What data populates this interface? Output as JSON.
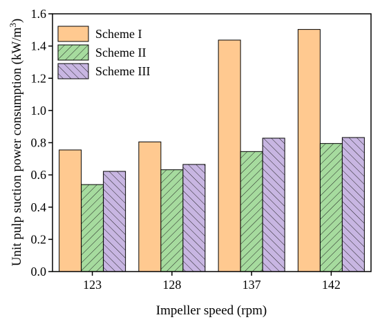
{
  "chart_data": {
    "type": "bar",
    "categories": [
      "123",
      "128",
      "137",
      "142"
    ],
    "series": [
      {
        "name": "Scheme I",
        "values": [
          0.755,
          0.805,
          1.437,
          1.503
        ],
        "fill": "#FFC990",
        "hatch": "none"
      },
      {
        "name": "Scheme II",
        "values": [
          0.54,
          0.632,
          0.745,
          0.795
        ],
        "fill": "#A6DB9E",
        "hatch": "forward"
      },
      {
        "name": "Scheme III",
        "values": [
          0.622,
          0.665,
          0.828,
          0.832
        ],
        "fill": "#C8B6E2",
        "hatch": "backward"
      }
    ],
    "xlabel": "Impeller speed (rpm)",
    "ylabel_main": "Unit pulp suction power consumption (kW/m",
    "ylabel_sup": "3",
    "ylabel_end": ")",
    "ylim": [
      0,
      1.6
    ],
    "yticks": [
      "0.0",
      "0.2",
      "0.4",
      "0.6",
      "0.8",
      "1.0",
      "1.2",
      "1.4",
      "1.6"
    ],
    "grid": false,
    "legend_position": "top-left",
    "colors": {
      "axis": "#000000",
      "bar_stroke": "#000000"
    }
  }
}
